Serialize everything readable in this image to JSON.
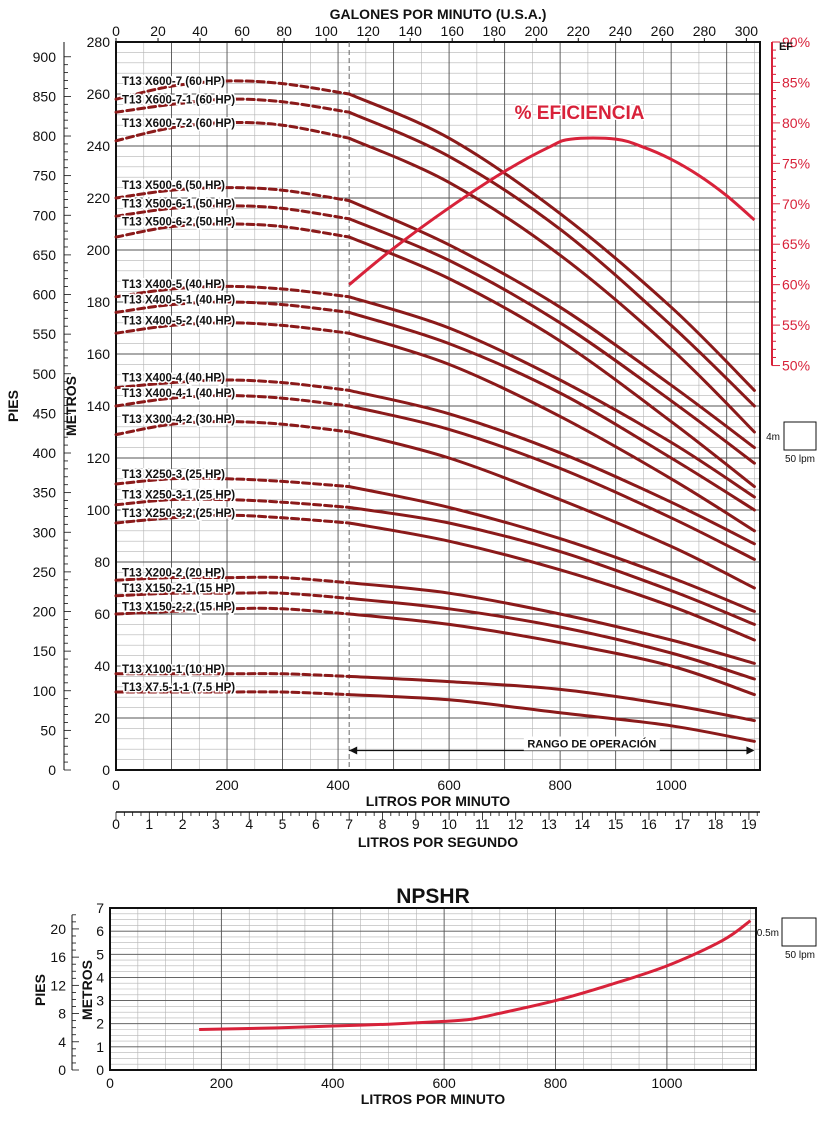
{
  "chart_data": [
    {
      "type": "line",
      "title": "",
      "top_axis_title": "GALONES POR MINUTO (U.S.A.)",
      "top_ticks": [
        0,
        20,
        40,
        60,
        80,
        100,
        120,
        140,
        160,
        180,
        200,
        220,
        240,
        260,
        280,
        300
      ],
      "xlabel": "LITROS POR MINUTO",
      "x_ticks": [
        0,
        200,
        400,
        600,
        800,
        1000
      ],
      "xlim": [
        0,
        1160
      ],
      "x2label": "LITROS POR SEGUNDO",
      "x2_ticks": [
        0,
        1,
        2,
        3,
        4,
        5,
        6,
        7,
        8,
        9,
        10,
        11,
        12,
        13,
        14,
        15,
        16,
        17,
        18,
        19
      ],
      "ylabel": "METROS",
      "y_ticks": [
        0,
        20,
        40,
        60,
        80,
        100,
        120,
        140,
        160,
        180,
        200,
        220,
        240,
        260,
        280
      ],
      "ylim": [
        0,
        280
      ],
      "y_left_label": "PIES",
      "y_left_ticks": [
        0,
        50,
        100,
        150,
        200,
        250,
        300,
        350,
        400,
        450,
        500,
        550,
        600,
        650,
        700,
        750,
        800,
        850,
        900
      ],
      "y_right_label": "EF",
      "y_right_ticks": [
        "50%",
        "55%",
        "60%",
        "65%",
        "70%",
        "75%",
        "80%",
        "85%",
        "90%"
      ],
      "efficiency_label": "% EFICIENCIA",
      "efficiency_curve": {
        "x": [
          420,
          500,
          600,
          700,
          780,
          820,
          900,
          950,
          1000,
          1050,
          1100,
          1150
        ],
        "y": [
          60,
          64.5,
          69.5,
          74,
          77,
          78,
          78,
          77,
          75.5,
          73.5,
          71,
          68
        ]
      },
      "operating_range_label": "RANGO DE OPERACIÓN",
      "operating_range": [
        420,
        1150
      ],
      "scale_box": {
        "vertical": "4m",
        "horizontal": "50 lpm"
      },
      "series": [
        {
          "name": "T13 X600-7 (60 HP)",
          "x": [
            0,
            100,
            200,
            300,
            420,
            600,
            800,
            1000,
            1150
          ],
          "y": [
            258,
            263,
            265,
            264,
            260,
            243,
            214,
            178,
            146
          ]
        },
        {
          "name": "T13 X600-7-1 (60 HP)",
          "x": [
            0,
            100,
            200,
            300,
            420,
            600,
            800,
            1000,
            1150
          ],
          "y": [
            253,
            256,
            258,
            257,
            253,
            236,
            208,
            171,
            140
          ]
        },
        {
          "name": "T13 X600-7-2 (60 HP)",
          "x": [
            0,
            100,
            200,
            300,
            420,
            600,
            800,
            1000,
            1150
          ],
          "y": [
            242,
            247,
            249,
            248,
            243,
            226,
            198,
            162,
            130
          ]
        },
        {
          "name": "T13 X500-6 (50 HP)",
          "x": [
            0,
            100,
            200,
            300,
            420,
            600,
            800,
            1000,
            1150
          ],
          "y": [
            220,
            223,
            224,
            223,
            219,
            202,
            178,
            148,
            124
          ]
        },
        {
          "name": "T13 X500-6-1 (50 HP)",
          "x": [
            0,
            100,
            200,
            300,
            420,
            600,
            800,
            1000,
            1150
          ],
          "y": [
            213,
            216,
            217,
            216,
            212,
            196,
            172,
            142,
            118
          ]
        },
        {
          "name": "T13 X500-6-2 (50 HP)",
          "x": [
            0,
            100,
            200,
            300,
            420,
            600,
            800,
            1000,
            1150
          ],
          "y": [
            205,
            209,
            210,
            209,
            205,
            189,
            165,
            134,
            109
          ]
        },
        {
          "name": "T13 X400-5 (40 HP)",
          "x": [
            0,
            100,
            200,
            300,
            420,
            600,
            800,
            1000,
            1150
          ],
          "y": [
            182,
            185,
            186,
            185,
            182,
            170,
            150,
            126,
            105
          ]
        },
        {
          "name": "T13 X400-5-1 (40 HP)",
          "x": [
            0,
            100,
            200,
            300,
            420,
            600,
            800,
            1000,
            1150
          ],
          "y": [
            176,
            179,
            180,
            179,
            176,
            164,
            145,
            120,
            100
          ]
        },
        {
          "name": "T13 X400-5-2 (40 HP)",
          "x": [
            0,
            100,
            200,
            300,
            420,
            600,
            800,
            1000,
            1150
          ],
          "y": [
            168,
            171,
            172,
            171,
            168,
            156,
            136,
            112,
            92
          ]
        },
        {
          "name": "T13 X400-4 (40 HP)",
          "x": [
            0,
            100,
            200,
            300,
            420,
            600,
            800,
            1000,
            1150
          ],
          "y": [
            147,
            149,
            150,
            149,
            146,
            137,
            122,
            103,
            87
          ]
        },
        {
          "name": "T13 X400-4-1 (40 HP)",
          "x": [
            0,
            100,
            200,
            300,
            420,
            600,
            800,
            1000,
            1150
          ],
          "y": [
            140,
            143,
            144,
            143,
            140,
            131,
            116,
            97,
            81
          ]
        },
        {
          "name": "T13 X300-4-2 (30 HP)",
          "x": [
            0,
            100,
            200,
            300,
            420,
            600,
            800,
            1000,
            1150
          ],
          "y": [
            129,
            133,
            134,
            133,
            130,
            120,
            104,
            86,
            70
          ]
        },
        {
          "name": "T13 X250-3 (25 HP)",
          "x": [
            0,
            100,
            200,
            300,
            420,
            600,
            800,
            1000,
            1150
          ],
          "y": [
            110,
            112,
            112,
            111,
            109,
            101,
            89,
            74,
            61
          ]
        },
        {
          "name": "T13 X250-3-1 (25 HP)",
          "x": [
            0,
            100,
            200,
            300,
            420,
            600,
            800,
            1000,
            1150
          ],
          "y": [
            102,
            104,
            104,
            103,
            101,
            95,
            84,
            69,
            56
          ]
        },
        {
          "name": "T13 X250-3-2 (25 HP)",
          "x": [
            0,
            100,
            200,
            300,
            420,
            600,
            800,
            1000,
            1150
          ],
          "y": [
            95,
            97,
            98,
            97,
            95,
            88,
            77,
            63,
            50
          ]
        },
        {
          "name": "T13 X200-2 (20 HP)",
          "x": [
            0,
            100,
            200,
            300,
            420,
            600,
            800,
            1000,
            1150
          ],
          "y": [
            73,
            74,
            74,
            74,
            72,
            68,
            60,
            50,
            41
          ]
        },
        {
          "name": "T13 X150-2-1 (15 HP)",
          "x": [
            0,
            100,
            200,
            300,
            420,
            600,
            800,
            1000,
            1150
          ],
          "y": [
            67,
            68,
            68,
            68,
            66,
            62,
            55,
            45,
            35
          ]
        },
        {
          "name": "T13 X150-2-2 (15 HP)",
          "x": [
            0,
            100,
            200,
            300,
            420,
            600,
            800,
            1000,
            1150
          ],
          "y": [
            60,
            61,
            62,
            62,
            60,
            56,
            49,
            40,
            29
          ]
        },
        {
          "name": "T13 X100-1 (10 HP)",
          "x": [
            0,
            100,
            200,
            300,
            420,
            600,
            800,
            1000,
            1150
          ],
          "y": [
            37,
            37,
            37,
            37,
            36,
            34,
            31,
            25,
            19
          ]
        },
        {
          "name": "T13 X7.5-1-1 (7.5 HP)",
          "x": [
            0,
            100,
            200,
            300,
            420,
            600,
            800,
            1000,
            1150
          ],
          "y": [
            30,
            30,
            30,
            30,
            29,
            27,
            22,
            17,
            11
          ]
        }
      ]
    },
    {
      "type": "line",
      "title": "NPSHR",
      "xlabel": "LITROS POR MINUTO",
      "x_ticks": [
        0,
        200,
        400,
        600,
        800,
        1000
      ],
      "xlim": [
        0,
        1160
      ],
      "ylabel": "METROS",
      "y_ticks": [
        0,
        1,
        2,
        3,
        4,
        5,
        6,
        7
      ],
      "ylim": [
        0,
        7
      ],
      "y_left_label": "PIES",
      "y_left_ticks": [
        0,
        4,
        8,
        12,
        16,
        20
      ],
      "scale_box": {
        "vertical": "0.5m",
        "horizontal": "50 lpm"
      },
      "series": [
        {
          "name": "",
          "x": [
            160,
            300,
            400,
            500,
            600,
            650,
            700,
            800,
            900,
            1000,
            1100,
            1150
          ],
          "y": [
            1.75,
            1.82,
            1.9,
            1.98,
            2.1,
            2.2,
            2.45,
            3.0,
            3.7,
            4.5,
            5.6,
            6.45
          ]
        }
      ]
    }
  ]
}
